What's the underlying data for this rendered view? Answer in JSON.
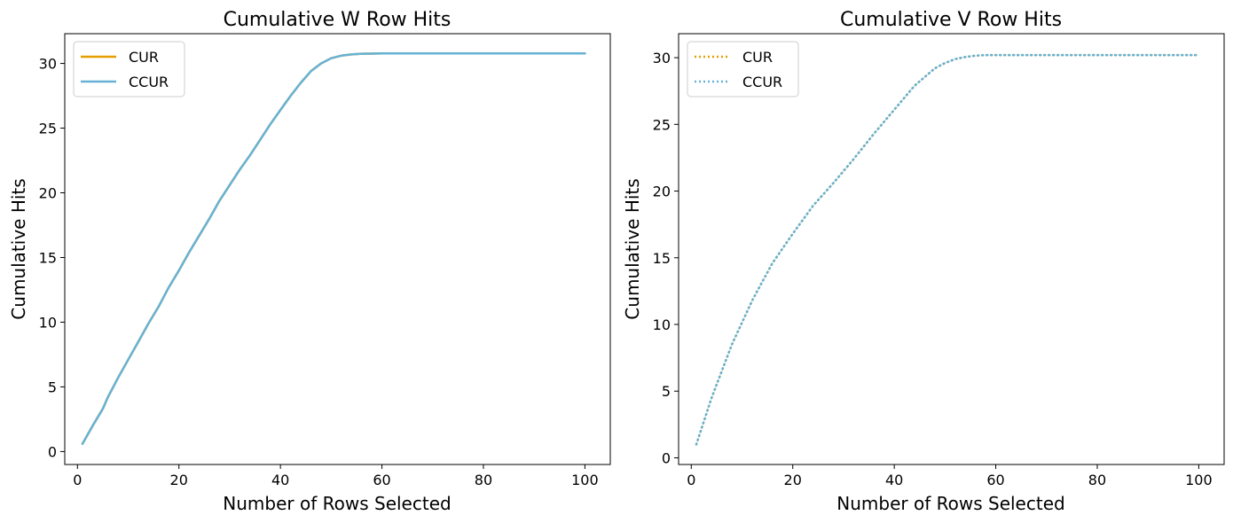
{
  "colors": {
    "cur": "#E69F00",
    "ccur": "#66B2D6",
    "axis": "#000000"
  },
  "chart_data": [
    {
      "type": "line",
      "title": "Cumulative W Row Hits",
      "xlabel": "Number of Rows Selected",
      "ylabel": "Cumulative Hits",
      "xlim": [
        -2.5,
        105
      ],
      "ylim": [
        -1,
        32.3
      ],
      "xticks": [
        0,
        20,
        40,
        60,
        80,
        100
      ],
      "yticks": [
        0,
        5,
        10,
        15,
        20,
        25,
        30
      ],
      "line_style": "solid",
      "legend": {
        "position": "top-left"
      },
      "x": [
        1,
        3,
        5,
        6,
        8,
        10,
        12,
        14,
        16,
        18,
        20,
        22,
        24,
        26,
        28,
        30,
        32,
        34,
        36,
        38,
        40,
        42,
        44,
        46,
        48,
        50,
        52,
        54,
        56,
        58,
        60,
        65,
        70,
        80,
        90,
        100
      ],
      "series": [
        {
          "name": "CUR",
          "values": [
            0.6,
            2.0,
            3.3,
            4.2,
            5.7,
            7.1,
            8.5,
            9.9,
            11.2,
            12.7,
            14.0,
            15.4,
            16.7,
            18.0,
            19.4,
            20.6,
            21.8,
            22.9,
            24.1,
            25.3,
            26.4,
            27.5,
            28.5,
            29.4,
            30.0,
            30.4,
            30.6,
            30.7,
            30.75,
            30.76,
            30.77,
            30.78,
            30.78,
            30.78,
            30.78,
            30.78
          ]
        },
        {
          "name": "CCUR",
          "values": [
            0.6,
            2.0,
            3.3,
            4.2,
            5.7,
            7.1,
            8.5,
            9.9,
            11.2,
            12.7,
            14.0,
            15.4,
            16.7,
            18.0,
            19.4,
            20.6,
            21.8,
            22.9,
            24.1,
            25.3,
            26.4,
            27.5,
            28.5,
            29.4,
            30.0,
            30.4,
            30.6,
            30.7,
            30.75,
            30.76,
            30.77,
            30.78,
            30.78,
            30.78,
            30.78,
            30.78
          ]
        }
      ]
    },
    {
      "type": "line",
      "title": "Cumulative V Row Hits",
      "xlabel": "Number of Rows Selected",
      "ylabel": "Cumulative Hits",
      "xlim": [
        -2.5,
        105
      ],
      "ylim": [
        -0.5,
        31.8
      ],
      "xticks": [
        0,
        20,
        40,
        60,
        80,
        100
      ],
      "yticks": [
        0,
        5,
        10,
        15,
        20,
        25,
        30
      ],
      "line_style": "dotted",
      "legend": {
        "position": "top-left"
      },
      "x": [
        1,
        4,
        8,
        12,
        16,
        20,
        24,
        28,
        32,
        36,
        40,
        44,
        48,
        50,
        52,
        54,
        56,
        58,
        60,
        70,
        80,
        90,
        100
      ],
      "series": [
        {
          "name": "CUR",
          "values": [
            1.0,
            4.5,
            8.5,
            11.8,
            14.6,
            16.8,
            18.9,
            20.6,
            22.4,
            24.3,
            26.1,
            27.9,
            29.2,
            29.6,
            29.9,
            30.05,
            30.15,
            30.2,
            30.2,
            30.2,
            30.2,
            30.2,
            30.2
          ]
        },
        {
          "name": "CCUR",
          "values": [
            1.0,
            4.5,
            8.5,
            11.8,
            14.6,
            16.8,
            18.9,
            20.6,
            22.4,
            24.3,
            26.1,
            27.9,
            29.2,
            29.6,
            29.9,
            30.05,
            30.15,
            30.2,
            30.2,
            30.2,
            30.2,
            30.2,
            30.2
          ]
        }
      ]
    }
  ]
}
